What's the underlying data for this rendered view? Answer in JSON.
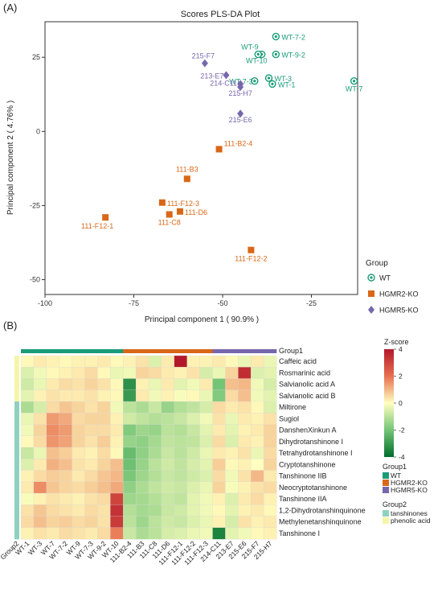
{
  "panels": {
    "a": "(A)",
    "b": "(B)"
  },
  "chart_data": [
    {
      "type": "scatter",
      "title": "Scores PLS-DA Plot",
      "xlabel": "Principal component 1 ( 90.9% )",
      "ylabel": "Principal component 2 ( 4.76% )",
      "xlim": [
        -100,
        -12
      ],
      "ylim": [
        -55,
        37
      ],
      "xticks": [
        -100,
        -75,
        -50,
        -25
      ],
      "yticks": [
        25,
        0,
        -25,
        -50
      ],
      "grid": false,
      "legend_title": "Group",
      "legend_position": "right",
      "series": [
        {
          "name": "WT",
          "marker": "circle-ring",
          "color": "#1a9c78",
          "points": [
            {
              "label": "WT-7-2",
              "x": -35,
              "y": 32
            },
            {
              "label": "WT-9",
              "x": -39,
              "y": 26
            },
            {
              "label": "WT-9-2",
              "x": -35,
              "y": 26
            },
            {
              "label": "WT-10",
              "x": -40,
              "y": 26
            },
            {
              "label": "WT-7-3",
              "x": -41,
              "y": 17
            },
            {
              "label": "WT-3",
              "x": -37,
              "y": 18
            },
            {
              "label": "WT-1",
              "x": -36,
              "y": 16
            },
            {
              "label": "WT-7",
              "x": -13,
              "y": 17
            }
          ]
        },
        {
          "name": "HGMR2-KO",
          "marker": "square",
          "color": "#d96718",
          "points": [
            {
              "label": "111-B2-4",
              "x": -51,
              "y": -6
            },
            {
              "label": "111-B3",
              "x": -60,
              "y": -16
            },
            {
              "label": "111-F12-3",
              "x": -67,
              "y": -24
            },
            {
              "label": "111-D6",
              "x": -62,
              "y": -27
            },
            {
              "label": "111-C8",
              "x": -65,
              "y": -28
            },
            {
              "label": "111-F12-1",
              "x": -83,
              "y": -29
            },
            {
              "label": "111-F12-2",
              "x": -42,
              "y": -40
            }
          ]
        },
        {
          "name": "HGMR5-KO",
          "marker": "diamond",
          "color": "#7667ad",
          "points": [
            {
              "label": "215-F7",
              "x": -55,
              "y": 23
            },
            {
              "label": "213-E7",
              "x": -49,
              "y": 19
            },
            {
              "label": "214-C11",
              "x": -45,
              "y": 16
            },
            {
              "label": "215-H7",
              "x": -45,
              "y": 15
            },
            {
              "label": "215-E6",
              "x": -45,
              "y": 6
            }
          ]
        }
      ]
    },
    {
      "type": "heatmap",
      "legend_title": "Z-score",
      "scale_ticks": [
        4,
        2,
        0,
        -2,
        -4
      ],
      "scale_colors": [
        "#b2182b",
        "#e8704f",
        "#ffffbf",
        "#74c476",
        "#006d2c"
      ],
      "group1_title": "Group1",
      "group2_title": "Group2",
      "group1_legend": [
        {
          "name": "WT",
          "color": "#1a9c78"
        },
        {
          "name": "HGMR2-KO",
          "color": "#d96718"
        },
        {
          "name": "HGMR5-KO",
          "color": "#7667ad"
        }
      ],
      "group2_legend": [
        {
          "name": "tanshinones",
          "color": "#8fd1c0"
        },
        {
          "name": "phenolic acid",
          "color": "#f5f5a8"
        }
      ],
      "columns": [
        "WT-1",
        "WT-3",
        "WT-7",
        "WT-7-2",
        "WT-9",
        "WT-7-3",
        "WT-9-2",
        "WT-10",
        "111-B2-4",
        "111-B3",
        "111-C8",
        "111-D6",
        "111-F12-1",
        "111-F12-2",
        "111-F12-3",
        "214-C11",
        "213-E7",
        "215-E6",
        "215-F7",
        "215-H7"
      ],
      "column_groups": [
        "WT",
        "WT",
        "WT",
        "WT",
        "WT",
        "WT",
        "WT",
        "WT",
        "HGMR2-KO",
        "HGMR2-KO",
        "HGMR2-KO",
        "HGMR2-KO",
        "HGMR2-KO",
        "HGMR2-KO",
        "HGMR2-KO",
        "HGMR5-KO",
        "HGMR5-KO",
        "HGMR5-KO",
        "HGMR5-KO",
        "HGMR5-KO"
      ],
      "bottom_label": "Group2",
      "rows": [
        "Caffeic acid",
        "Rosmarinic acid",
        "Salvianolic acid A",
        "Salvianolic acid B",
        "Miltirone",
        "Sugiol",
        "DanshenXinkun A",
        "Dihydrotanshinone I",
        "Tetrahydrotanshinone I",
        "Cryptotanshinone",
        "Tanshinone IIB",
        "Neocryptotanshinone",
        "Tanshinone IIA",
        "1,2-Dihydrotanshinquinone",
        "Methylenetanshinquinone",
        "Tanshinone I"
      ],
      "row_groups": [
        "phenolic acid",
        "phenolic acid",
        "phenolic acid",
        "phenolic acid",
        "tanshinones",
        "tanshinones",
        "tanshinones",
        "tanshinones",
        "tanshinones",
        "tanshinones",
        "tanshinones",
        "tanshinones",
        "tanshinones",
        "tanshinones",
        "tanshinones",
        "tanshinones"
      ],
      "values": [
        [
          0.1,
          0.3,
          0.2,
          0.1,
          0.2,
          0.2,
          0.3,
          0.1,
          0.2,
          0.4,
          -0.5,
          0.3,
          4.0,
          0.2,
          0.2,
          0.3,
          0.1,
          -0.3,
          0.3,
          -0.3
        ],
        [
          -0.5,
          -0.2,
          0.1,
          0.2,
          0.3,
          0.5,
          0.1,
          -0.3,
          -0.2,
          0.6,
          0.5,
          0.3,
          0.2,
          0.4,
          -0.6,
          -0.3,
          0.6,
          3.5,
          -0.5,
          -0.4
        ],
        [
          -0.7,
          -0.3,
          0.3,
          0.5,
          0.4,
          0.6,
          0.4,
          0.1,
          -3.2,
          0.2,
          -0.3,
          0.3,
          -0.4,
          -0.2,
          0.3,
          -2.0,
          0.9,
          1.0,
          -0.2,
          -0.6
        ],
        [
          -0.4,
          0.2,
          0.4,
          0.3,
          0.3,
          0.4,
          0.2,
          0.1,
          -3.0,
          0.3,
          -0.2,
          0.2,
          -0.1,
          0.1,
          -0.3,
          -1.8,
          0.5,
          0.9,
          -0.2,
          -0.4
        ],
        [
          -1.2,
          -0.6,
          0.5,
          0.8,
          0.6,
          0.4,
          0.6,
          -0.2,
          -1.0,
          -1.2,
          -0.8,
          -1.5,
          -1.1,
          -0.9,
          -0.6,
          0.5,
          0.3,
          0.4,
          0.1,
          -0.5
        ],
        [
          -0.3,
          0.4,
          1.4,
          1.2,
          0.5,
          0.6,
          0.6,
          0.2,
          -0.7,
          -0.9,
          -1.1,
          -1.0,
          -0.8,
          -0.5,
          -0.2,
          0.4,
          -0.3,
          0.3,
          0.2,
          0.4
        ],
        [
          -0.2,
          0.6,
          1.6,
          1.4,
          0.6,
          0.5,
          0.5,
          0.3,
          -1.8,
          -1.4,
          -1.5,
          -1.0,
          -1.1,
          -0.8,
          -0.4,
          0.3,
          -0.4,
          0.2,
          0.3,
          0.6
        ],
        [
          0.1,
          0.5,
          1.5,
          1.3,
          0.6,
          0.4,
          0.7,
          0.2,
          -1.5,
          -1.6,
          -1.3,
          -0.9,
          -1.0,
          -0.9,
          -0.5,
          0.5,
          -0.5,
          0.3,
          0.2,
          0.6
        ],
        [
          -0.8,
          -0.3,
          0.9,
          0.7,
          0.3,
          0.2,
          0.5,
          0.1,
          -2.2,
          -1.6,
          -1.2,
          -0.8,
          -1.0,
          -0.7,
          -0.3,
          0.3,
          0.2,
          0.4,
          -0.3,
          0.5
        ],
        [
          -0.5,
          0.3,
          1.1,
          0.9,
          0.4,
          0.3,
          0.6,
          0.9,
          -2.1,
          -1.5,
          -1.0,
          -0.7,
          -0.9,
          -0.6,
          -0.4,
          0.7,
          0.1,
          0.2,
          0.0,
          0.6
        ],
        [
          0.2,
          0.5,
          0.7,
          0.6,
          0.3,
          0.5,
          0.8,
          1.0,
          -1.9,
          -1.4,
          -1.1,
          -0.8,
          -0.9,
          -0.7,
          -0.5,
          0.5,
          -0.2,
          0.4,
          1.0,
          0.3
        ],
        [
          0.3,
          1.6,
          0.8,
          0.6,
          0.5,
          0.7,
          0.9,
          1.2,
          -1.6,
          -1.2,
          -0.9,
          -0.7,
          -0.8,
          -0.5,
          -0.3,
          0.6,
          -0.1,
          0.2,
          0.4,
          0.5
        ],
        [
          -0.1,
          0.2,
          0.4,
          0.3,
          0.2,
          0.4,
          0.5,
          3.0,
          -1.4,
          -1.3,
          -1.1,
          -0.8,
          -0.9,
          -0.4,
          -0.2,
          0.2,
          -0.5,
          0.3,
          0.5,
          0.2
        ],
        [
          0.4,
          0.8,
          0.5,
          0.4,
          0.3,
          0.5,
          0.4,
          3.4,
          -1.1,
          -1.3,
          -1.2,
          -0.8,
          -0.7,
          -0.4,
          -0.2,
          0.1,
          -0.4,
          0.2,
          0.3,
          0.1
        ],
        [
          0.5,
          0.9,
          0.6,
          0.7,
          0.5,
          0.6,
          0.4,
          3.2,
          -1.0,
          -1.4,
          -1.0,
          -0.7,
          -0.8,
          -0.5,
          -0.3,
          0.2,
          -0.6,
          0.4,
          0.2,
          0.3
        ],
        [
          0.2,
          0.4,
          0.3,
          0.5,
          0.4,
          0.3,
          0.5,
          1.8,
          -0.8,
          -1.2,
          -1.0,
          -0.6,
          -0.5,
          -0.3,
          -0.2,
          -3.5,
          -0.4,
          -0.2,
          0.1,
          0.2
        ]
      ]
    }
  ]
}
